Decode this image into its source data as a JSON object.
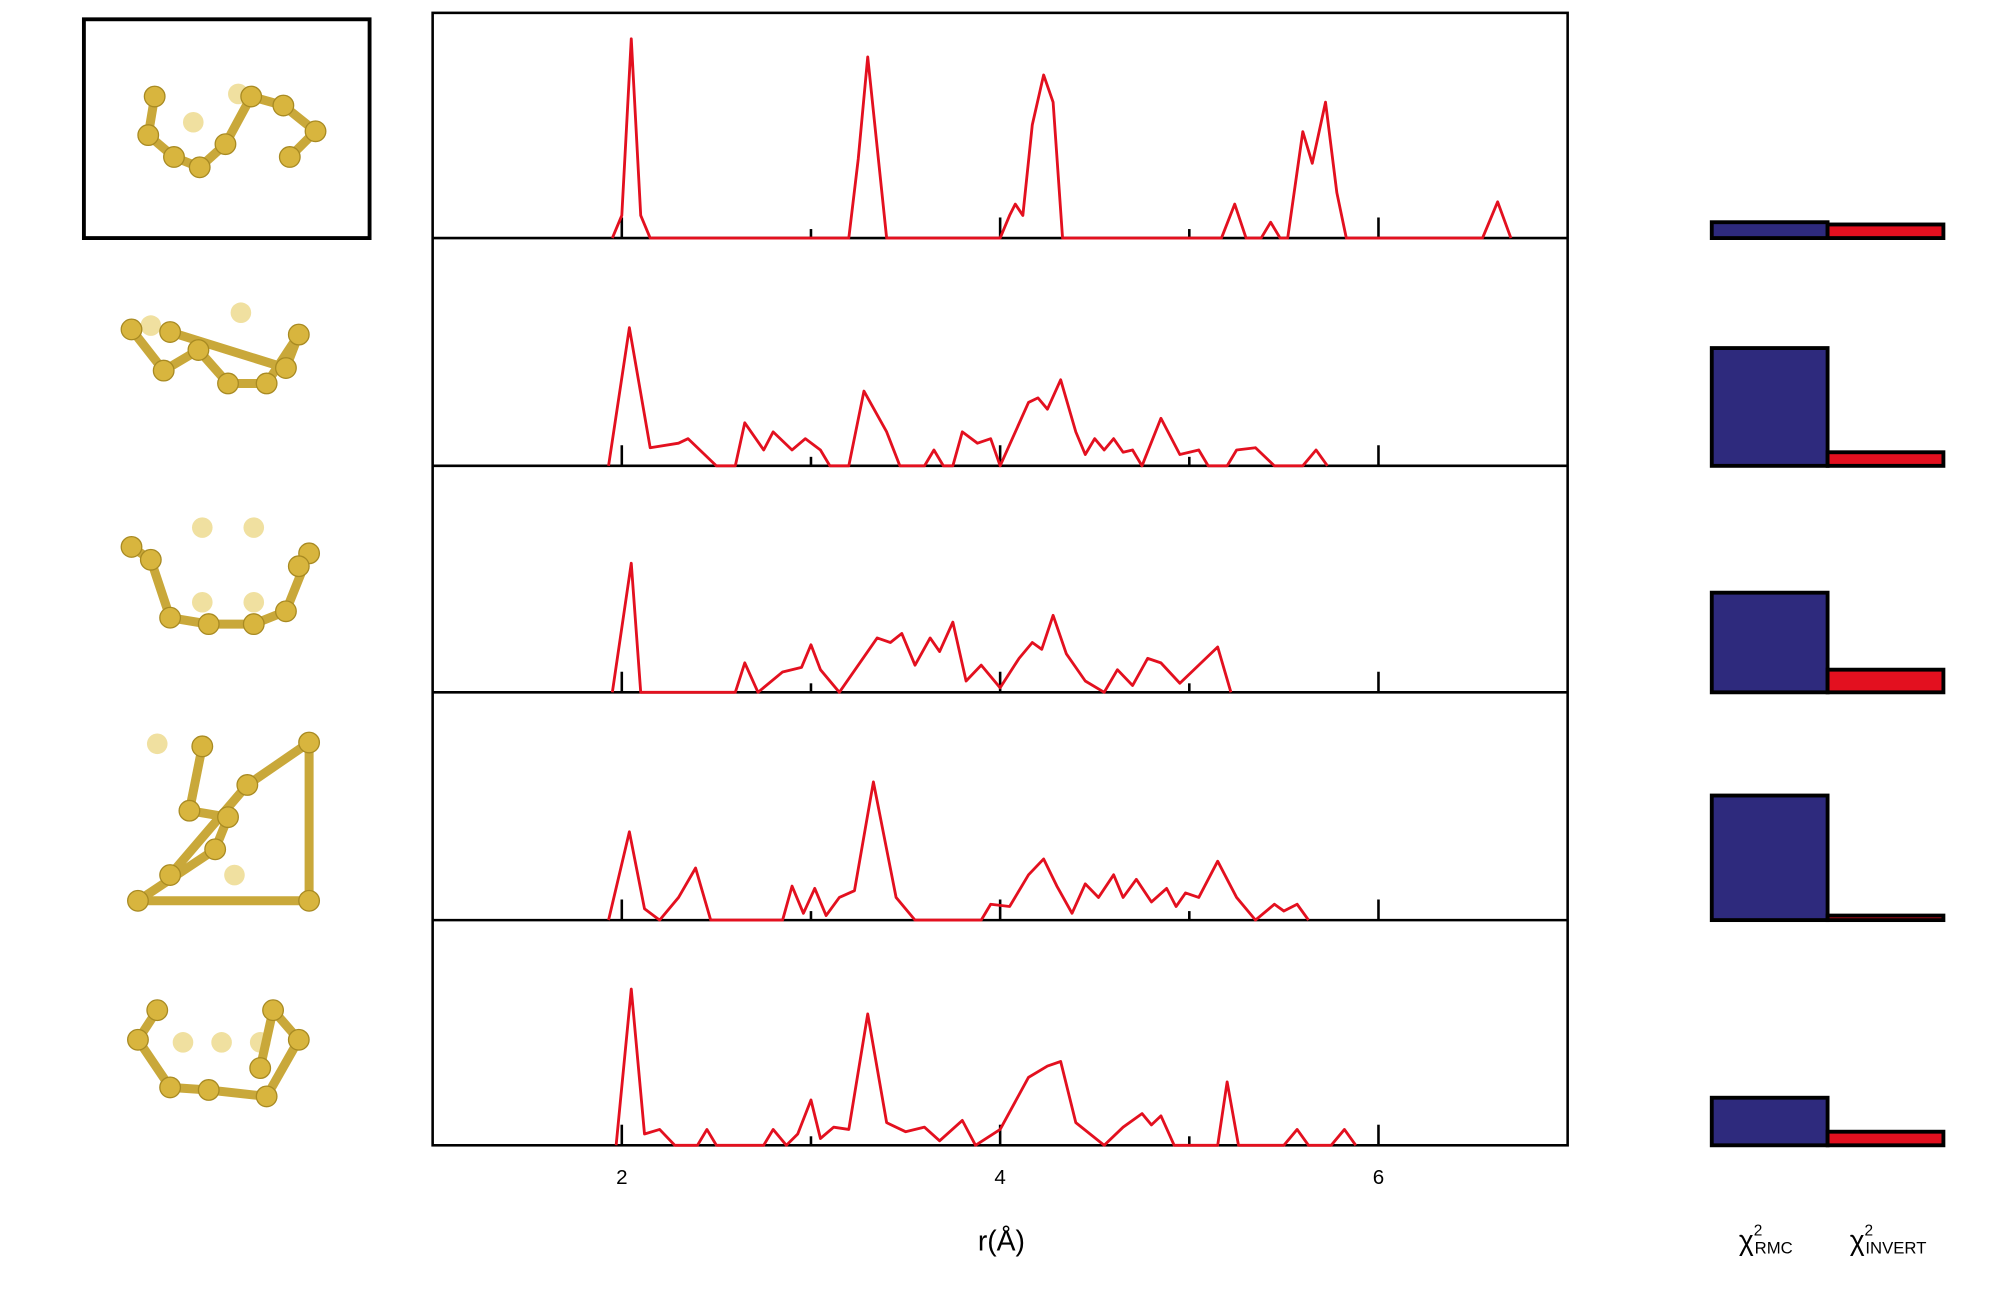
{
  "chart_data": [
    {
      "type": "line",
      "x_label": "r(Å)",
      "xlim": [
        1,
        7
      ],
      "xticks": [
        2,
        4,
        6
      ],
      "xminor_ticks": [
        3,
        5
      ],
      "ylim": [
        0,
        1
      ],
      "series": [
        {
          "color": "#e3101f",
          "x": [
            1.95,
            2.0,
            2.05,
            2.1,
            2.15,
            3.2,
            3.25,
            3.3,
            3.35,
            3.4,
            4.0,
            4.05,
            4.08,
            4.12,
            4.17,
            4.23,
            4.28,
            4.33,
            5.17,
            5.24,
            5.3,
            5.38,
            5.43,
            5.48,
            5.52,
            5.6,
            5.65,
            5.72,
            5.78,
            5.83,
            6.55,
            6.63,
            6.7
          ],
          "values": [
            0,
            0.1,
            0.88,
            0.1,
            0,
            0,
            0.35,
            0.8,
            0.4,
            0,
            0,
            0.1,
            0.15,
            0.1,
            0.5,
            0.72,
            0.6,
            0,
            0,
            0.15,
            0,
            0,
            0.07,
            0,
            0,
            0.47,
            0.33,
            0.6,
            0.2,
            0,
            0,
            0.16,
            0
          ]
        },
        {
          "color": "#e3101f",
          "x": [
            1.93,
            2.04,
            2.15,
            2.3,
            2.35,
            2.5,
            2.6,
            2.65,
            2.75,
            2.8,
            2.9,
            2.97,
            3.05,
            3.1,
            3.2,
            3.28,
            3.4,
            3.47,
            3.6,
            3.65,
            3.7,
            3.75,
            3.8,
            3.88,
            3.95,
            4.0,
            4.15,
            4.2,
            4.25,
            4.32,
            4.4,
            4.45,
            4.5,
            4.55,
            4.6,
            4.65,
            4.7,
            4.75,
            4.85,
            4.95,
            5.05,
            5.1,
            5.2,
            5.25,
            5.35,
            5.45,
            5.6,
            5.67,
            5.73
          ],
          "values": [
            0,
            0.61,
            0.08,
            0.1,
            0.12,
            0,
            0,
            0.19,
            0.07,
            0.15,
            0.07,
            0.12,
            0.07,
            0,
            0,
            0.33,
            0.15,
            0,
            0,
            0.07,
            0,
            0,
            0.15,
            0.1,
            0.12,
            0,
            0.28,
            0.3,
            0.25,
            0.38,
            0.15,
            0.05,
            0.12,
            0.07,
            0.12,
            0.06,
            0.07,
            0,
            0.21,
            0.05,
            0.07,
            0,
            0,
            0.07,
            0.08,
            0,
            0,
            0.07,
            0
          ]
        },
        {
          "color": "#e3101f",
          "x": [
            1.95,
            2.05,
            2.1,
            2.6,
            2.65,
            2.72,
            2.85,
            2.95,
            3.0,
            3.05,
            3.15,
            3.35,
            3.42,
            3.48,
            3.55,
            3.63,
            3.68,
            3.75,
            3.82,
            3.9,
            4.0,
            4.1,
            4.17,
            4.22,
            4.28,
            4.35,
            4.45,
            4.55,
            4.62,
            4.7,
            4.78,
            4.85,
            4.95,
            5.05,
            5.15,
            5.22
          ],
          "values": [
            0,
            0.57,
            0,
            0,
            0.13,
            0,
            0.09,
            0.11,
            0.21,
            0.1,
            0,
            0.24,
            0.22,
            0.26,
            0.12,
            0.24,
            0.18,
            0.31,
            0.05,
            0.12,
            0.02,
            0.15,
            0.22,
            0.19,
            0.34,
            0.17,
            0.05,
            0,
            0.1,
            0.03,
            0.15,
            0.13,
            0.04,
            0.12,
            0.2,
            0
          ]
        },
        {
          "color": "#e3101f",
          "x": [
            1.93,
            2.04,
            2.12,
            2.2,
            2.3,
            2.39,
            2.47,
            2.85,
            2.9,
            2.96,
            3.02,
            3.08,
            3.15,
            3.23,
            3.33,
            3.45,
            3.55,
            3.9,
            3.95,
            4.05,
            4.15,
            4.23,
            4.3,
            4.38,
            4.45,
            4.52,
            4.6,
            4.65,
            4.72,
            4.8,
            4.88,
            4.93,
            4.98,
            5.05,
            5.15,
            5.25,
            5.35,
            5.45,
            5.5,
            5.57,
            5.63
          ],
          "values": [
            0,
            0.39,
            0.05,
            0,
            0.1,
            0.23,
            0,
            0,
            0.15,
            0.03,
            0.14,
            0.02,
            0.1,
            0.13,
            0.61,
            0.1,
            0,
            0,
            0.07,
            0.06,
            0.2,
            0.27,
            0.15,
            0.03,
            0.16,
            0.1,
            0.2,
            0.1,
            0.18,
            0.08,
            0.14,
            0.06,
            0.12,
            0.1,
            0.26,
            0.1,
            0,
            0.07,
            0.04,
            0.07,
            0
          ]
        },
        {
          "color": "#e3101f",
          "x": [
            1.97,
            2.05,
            2.12,
            2.2,
            2.28,
            2.4,
            2.45,
            2.5,
            2.75,
            2.8,
            2.87,
            2.93,
            3.0,
            3.05,
            3.12,
            3.2,
            3.3,
            3.4,
            3.5,
            3.6,
            3.68,
            3.8,
            3.87,
            4.0,
            4.15,
            4.25,
            4.32,
            4.4,
            4.55,
            4.65,
            4.75,
            4.8,
            4.85,
            4.92,
            5.15,
            5.2,
            5.26,
            5.5,
            5.57,
            5.63,
            5.75,
            5.82,
            5.88
          ],
          "values": [
            0,
            0.69,
            0.05,
            0.07,
            0,
            0,
            0.07,
            0,
            0,
            0.07,
            0,
            0.05,
            0.2,
            0.03,
            0.08,
            0.07,
            0.58,
            0.1,
            0.06,
            0.08,
            0.02,
            0.11,
            0,
            0.07,
            0.3,
            0.35,
            0.37,
            0.1,
            0,
            0.08,
            0.14,
            0.09,
            0.13,
            0,
            0,
            0.28,
            0,
            0,
            0.07,
            0,
            0,
            0.07,
            0
          ]
        }
      ]
    },
    {
      "type": "bar",
      "ylim": [
        0,
        1
      ],
      "series": [
        {
          "name_symbol": "χ",
          "name_sup": "2",
          "name_sub": "RMC",
          "color": "#2e2a7d",
          "values": [
            0.07,
            0.52,
            0.44,
            0.55,
            0.21
          ]
        },
        {
          "name_symbol": "χ",
          "name_sup": "2",
          "name_sub": "INVERT",
          "color": "#e3101f",
          "values": [
            0.06,
            0.06,
            0.1,
            0.02,
            0.06
          ]
        }
      ]
    }
  ]
}
